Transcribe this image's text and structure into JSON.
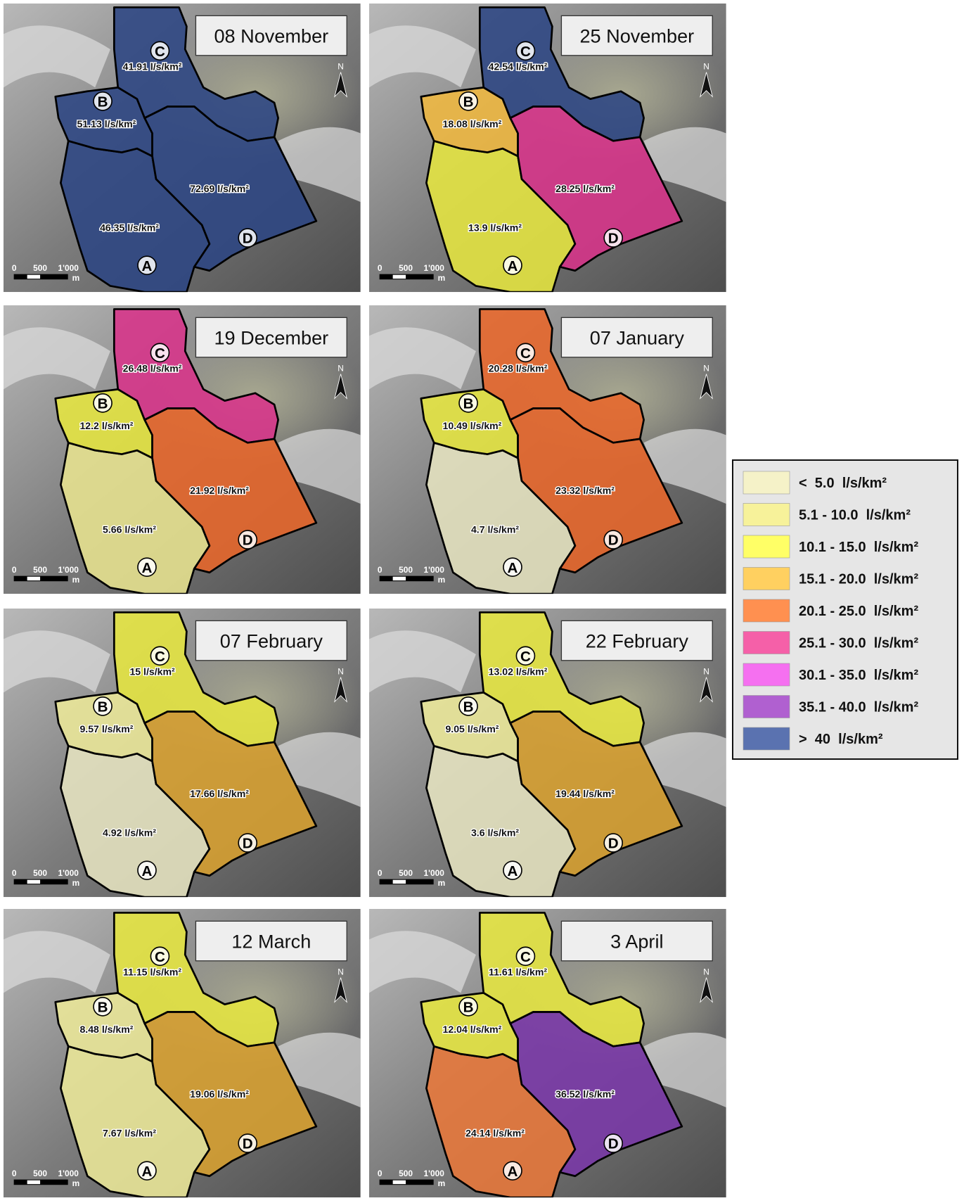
{
  "panels": [
    {
      "date": "08 November",
      "regions": [
        {
          "id": "A",
          "label": "46.35 l/s/km²",
          "color": "#2c4583"
        },
        {
          "id": "B",
          "label": "51.13 l/s/km²",
          "color": "#2c4583"
        },
        {
          "id": "C",
          "label": "41.91 l/s/km²",
          "color": "#2c4583"
        },
        {
          "id": "D",
          "label": "72.69 l/s/km²",
          "color": "#2c4583"
        }
      ]
    },
    {
      "date": "25 November",
      "regions": [
        {
          "id": "A",
          "label": "13.9 l/s/km²",
          "color": "#e6e640"
        },
        {
          "id": "B",
          "label": "18.08 l/s/km²",
          "color": "#f0b840"
        },
        {
          "id": "C",
          "label": "42.54 l/s/km²",
          "color": "#2c4583"
        },
        {
          "id": "D",
          "label": "28.25 l/s/km²",
          "color": "#d8338a"
        }
      ]
    },
    {
      "date": "19 December",
      "regions": [
        {
          "id": "A",
          "label": "5.66 l/s/km²",
          "color": "#e8e490"
        },
        {
          "id": "B",
          "label": "12.2 l/s/km²",
          "color": "#e6e640"
        },
        {
          "id": "C",
          "label": "26.48 l/s/km²",
          "color": "#d8338a"
        },
        {
          "id": "D",
          "label": "21.92 l/s/km²",
          "color": "#e8662a"
        }
      ]
    },
    {
      "date": "07 January",
      "regions": [
        {
          "id": "A",
          "label": "4.7 l/s/km²",
          "color": "#e6e4c0"
        },
        {
          "id": "B",
          "label": "10.49 l/s/km²",
          "color": "#e6e640"
        },
        {
          "id": "C",
          "label": "20.28 l/s/km²",
          "color": "#e8662a"
        },
        {
          "id": "D",
          "label": "23.32 l/s/km²",
          "color": "#e8662a"
        }
      ]
    },
    {
      "date": "07 February",
      "regions": [
        {
          "id": "A",
          "label": "4.92 l/s/km²",
          "color": "#e6e4c0"
        },
        {
          "id": "B",
          "label": "9.57 l/s/km²",
          "color": "#ece898"
        },
        {
          "id": "C",
          "label": "15 l/s/km²",
          "color": "#e6e640"
        },
        {
          "id": "D",
          "label": "17.66 l/s/km²",
          "color": "#d8a030"
        }
      ]
    },
    {
      "date": "22 February",
      "regions": [
        {
          "id": "A",
          "label": "3.6 l/s/km²",
          "color": "#e6e4c0"
        },
        {
          "id": "B",
          "label": "9.05 l/s/km²",
          "color": "#ece898"
        },
        {
          "id": "C",
          "label": "13.02 l/s/km²",
          "color": "#e6e640"
        },
        {
          "id": "D",
          "label": "19.44 l/s/km²",
          "color": "#d8a030"
        }
      ]
    },
    {
      "date": "12 March",
      "regions": [
        {
          "id": "A",
          "label": "7.67 l/s/km²",
          "color": "#ece898"
        },
        {
          "id": "B",
          "label": "8.48 l/s/km²",
          "color": "#ece898"
        },
        {
          "id": "C",
          "label": "11.15 l/s/km²",
          "color": "#e6e640"
        },
        {
          "id": "D",
          "label": "19.06 l/s/km²",
          "color": "#d8a030"
        }
      ]
    },
    {
      "date": "3 April",
      "regions": [
        {
          "id": "A",
          "label": "24.14 l/s/km²",
          "color": "#e8783a"
        },
        {
          "id": "B",
          "label": "12.04 l/s/km²",
          "color": "#e6e640"
        },
        {
          "id": "C",
          "label": "11.61 l/s/km²",
          "color": "#e6e640"
        },
        {
          "id": "D",
          "label": "36.52 l/s/km²",
          "color": "#7a38a8"
        }
      ]
    }
  ],
  "scale_bar": {
    "ticks": [
      "0",
      "500",
      "1'000"
    ],
    "unit": "m"
  },
  "north": "N",
  "legend": [
    {
      "label": "<  5.0  l/s/km²",
      "color": "#f5f2c8"
    },
    {
      "label": "5.1 - 10.0  l/s/km²",
      "color": "#f7f29a"
    },
    {
      "label": "10.1 - 15.0  l/s/km²",
      "color": "#ffff66"
    },
    {
      "label": "15.1 - 20.0  l/s/km²",
      "color": "#ffd060"
    },
    {
      "label": "20.1 - 25.0  l/s/km²",
      "color": "#ff9050"
    },
    {
      "label": "25.1 - 30.0  l/s/km²",
      "color": "#f560a8"
    },
    {
      "label": "30.1 - 35.0  l/s/km²",
      "color": "#f570f0"
    },
    {
      "label": "35.1 - 40.0  l/s/km²",
      "color": "#b060d0"
    },
    {
      "label": ">  40  l/s/km²",
      "color": "#5a72b0"
    }
  ]
}
